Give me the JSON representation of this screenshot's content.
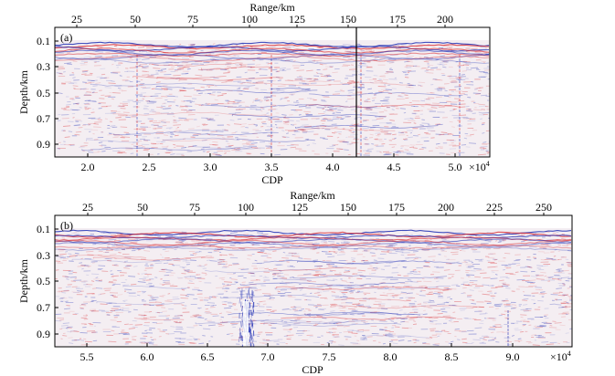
{
  "figure": {
    "panels": [
      {
        "label": "(a)",
        "top_axis_label": "Range/km",
        "top_ticks": [
          "25",
          "50",
          "75",
          "100",
          "125",
          "150",
          "175",
          "200"
        ],
        "left_axis_label": "Depth/km",
        "left_ticks": [
          "0.1",
          "0.3",
          "0.5",
          "0.7",
          "0.9"
        ],
        "bottom_axis_label": "CDP",
        "bottom_ticks": [
          "2.0",
          "2.5",
          "3.0",
          "3.5",
          "4.0",
          "4.5",
          "5.0"
        ],
        "multiplier_base": "×10",
        "multiplier_exp": "4"
      },
      {
        "label": "(b)",
        "top_axis_label": "Range/km",
        "top_ticks": [
          "25",
          "50",
          "75",
          "100",
          "125",
          "150",
          "175",
          "200",
          "225",
          "250"
        ],
        "left_axis_label": "Depth/km",
        "left_ticks": [
          "0.1",
          "0.3",
          "0.5",
          "0.7",
          "0.9"
        ],
        "bottom_axis_label": "CDP",
        "bottom_ticks": [
          "5.5",
          "6.0",
          "6.5",
          "7.0",
          "7.5",
          "8.0",
          "8.5",
          "9.0"
        ],
        "multiplier_base": "×10",
        "multiplier_exp": "4"
      }
    ],
    "colors": {
      "positive": "#d8262b",
      "negative": "#1f2fb4",
      "background": "#ffffff"
    }
  }
}
